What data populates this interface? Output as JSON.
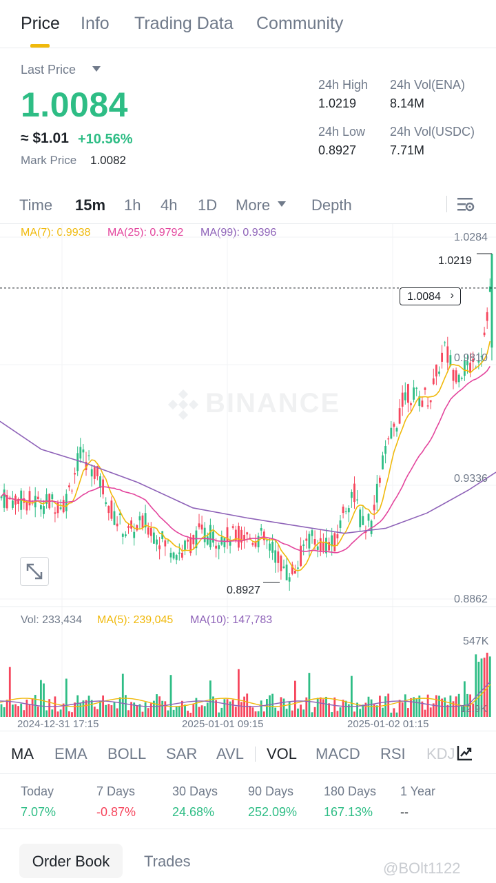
{
  "tabs": [
    "Price",
    "Info",
    "Trading Data",
    "Community"
  ],
  "header": {
    "last_price_label": "Last Price",
    "price": "1.0084",
    "usd_price": "≈ $1.01",
    "change_pct": "+10.56%",
    "mark_price_label": "Mark Price",
    "mark_price": "1.0082",
    "stats": {
      "high_label": "24h High",
      "high_value": "1.0219",
      "vol_ena_label": "24h Vol(ENA)",
      "vol_ena_value": "8.14M",
      "low_label": "24h Low",
      "low_value": "0.8927",
      "vol_usdc_label": "24h Vol(USDC)",
      "vol_usdc_value": "7.71M"
    }
  },
  "intervals": [
    "Time",
    "15m",
    "1h",
    "4h",
    "1D",
    "More",
    "Depth"
  ],
  "chart": {
    "ma_legend": {
      "ma7": "MA(7): 0.9938",
      "ma25": "MA(25): 0.9792",
      "ma99": "MA(99): 0.9396"
    },
    "price_axis": [
      "1.0284",
      "0.9810",
      "0.9336",
      "0.8862"
    ],
    "current_price_tag": "1.0084",
    "high_label": "1.0219",
    "low_label": "0.8927",
    "watermark": "BINANCE",
    "vol_legend": {
      "vol": "Vol: 233,434",
      "ma5": "MA(5): 239,045",
      "ma10": "MA(10): 147,783"
    },
    "vol_axis_top": "547K",
    "vol_axis_bottom": "12.9K",
    "time_labels": [
      "2024-12-31 17:15",
      "2025-01-01 09:15",
      "2025-01-02 01:15"
    ],
    "colors": {
      "up": "#2ebd85",
      "down": "#f6465d",
      "ma7": "#f0b90b",
      "ma25": "#e3459d",
      "ma99": "#8e62b8"
    }
  },
  "indicators": [
    "MA",
    "EMA",
    "BOLL",
    "SAR",
    "AVL",
    "VOL",
    "MACD",
    "RSI",
    "KDJ"
  ],
  "performance": [
    {
      "label": "Today",
      "value": "7.07%",
      "dir": "up"
    },
    {
      "label": "7 Days",
      "value": "-0.87%",
      "dir": "down"
    },
    {
      "label": "30 Days",
      "value": "24.68%",
      "dir": "up"
    },
    {
      "label": "90 Days",
      "value": "252.09%",
      "dir": "up"
    },
    {
      "label": "180 Days",
      "value": "167.13%",
      "dir": "up"
    },
    {
      "label": "1 Year",
      "value": "--",
      "dir": "flat"
    }
  ],
  "bottom_tabs": [
    "Order Book",
    "Trades"
  ],
  "credit": "@BOlt1122"
}
